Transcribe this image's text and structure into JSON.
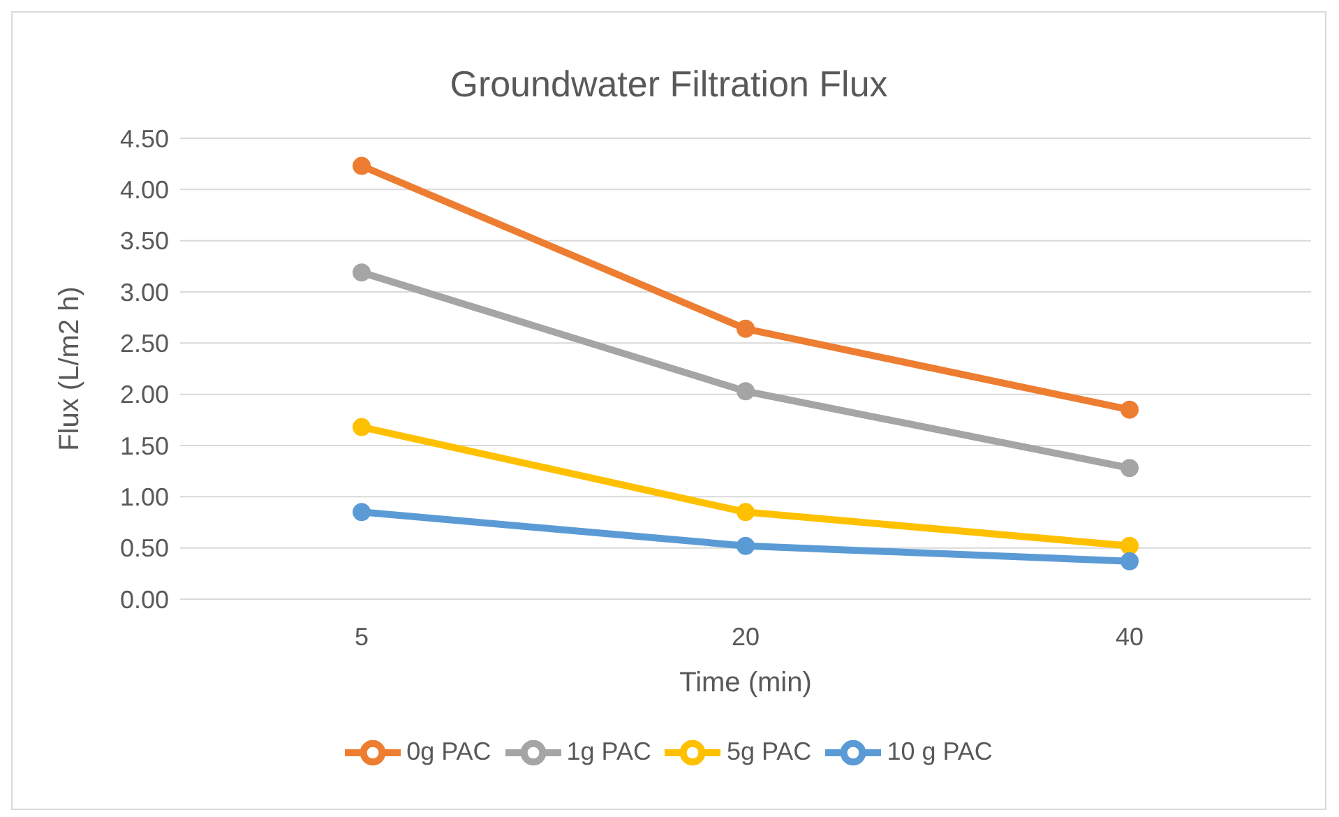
{
  "chart_data": {
    "type": "line",
    "title": "Groundwater Filtration Flux",
    "xlabel": "Time (min)",
    "ylabel": "Flux (L/m2 h)",
    "categories": [
      "5",
      "20",
      "40"
    ],
    "series": [
      {
        "name": "0g PAC",
        "color": "#ed7d31",
        "values": [
          4.23,
          2.64,
          1.85
        ]
      },
      {
        "name": "1g PAC",
        "color": "#a5a5a5",
        "values": [
          3.19,
          2.03,
          1.28
        ]
      },
      {
        "name": "5g PAC",
        "color": "#ffc000",
        "values": [
          1.68,
          0.85,
          0.52
        ]
      },
      {
        "name": "10 g PAC",
        "color": "#5b9bd5",
        "values": [
          0.85,
          0.52,
          0.37
        ]
      }
    ],
    "ylim": [
      0,
      4.5
    ],
    "yticks": [
      {
        "value": 0,
        "label": "0.00"
      },
      {
        "value": 0.5,
        "label": "0.50"
      },
      {
        "value": 1,
        "label": "1.00"
      },
      {
        "value": 1.5,
        "label": "1.50"
      },
      {
        "value": 2,
        "label": "2.00"
      },
      {
        "value": 2.5,
        "label": "2.50"
      },
      {
        "value": 3,
        "label": "3.00"
      },
      {
        "value": 3.5,
        "label": "3.50"
      },
      {
        "value": 4,
        "label": "4.00"
      },
      {
        "value": 4.5,
        "label": "4.50"
      }
    ],
    "grid": "y",
    "legend": "bottom",
    "marker": "circle",
    "line_style": "solid"
  }
}
